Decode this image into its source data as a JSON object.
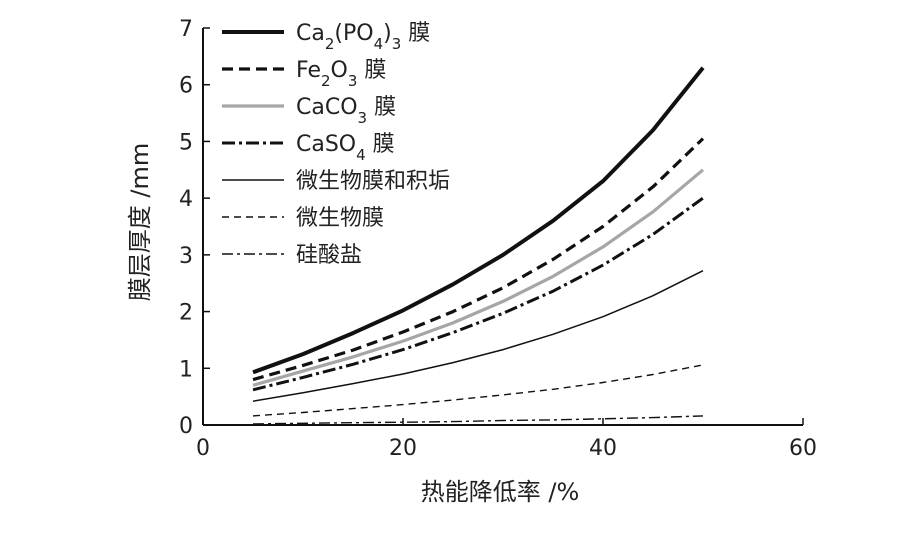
{
  "chart_data": {
    "type": "line",
    "xlabel": "热能降低率 /%",
    "ylabel": "膜层厚度 /mm",
    "xlim": [
      0,
      60
    ],
    "ylim": [
      0,
      7
    ],
    "xticks": [
      "0",
      "20",
      "40",
      "60"
    ],
    "yticks": [
      "0",
      "1",
      "2",
      "3",
      "4",
      "5",
      "6",
      "7"
    ],
    "grid": false,
    "legend_position": "top-left",
    "x": [
      5,
      10,
      15,
      20,
      25,
      30,
      35,
      40,
      45,
      50
    ],
    "series": [
      {
        "name": "Ca2(PO4)3 膜",
        "values": [
          0.93,
          1.25,
          1.62,
          2.02,
          2.48,
          3.0,
          3.6,
          4.3,
          5.2,
          6.3
        ],
        "color": "#111111",
        "stroke_width": 4,
        "dash": ""
      },
      {
        "name": "Fe2O3 膜",
        "values": [
          0.8,
          1.05,
          1.32,
          1.64,
          2.0,
          2.42,
          2.92,
          3.5,
          4.2,
          5.05
        ],
        "color": "#111111",
        "stroke_width": 3.2,
        "dash": "11,6"
      },
      {
        "name": "CaCO3 膜",
        "values": [
          0.7,
          0.95,
          1.2,
          1.48,
          1.8,
          2.18,
          2.62,
          3.14,
          3.76,
          4.5
        ],
        "color": "#a6a6a6",
        "stroke_width": 3.2,
        "dash": ""
      },
      {
        "name": "CaSO4 膜",
        "values": [
          0.62,
          0.84,
          1.07,
          1.33,
          1.63,
          1.97,
          2.36,
          2.82,
          3.36,
          4.0
        ],
        "color": "#111111",
        "stroke_width": 3,
        "dash": "13,4,3,4"
      },
      {
        "name": "微生物膜和积垢",
        "values": [
          0.42,
          0.57,
          0.73,
          0.9,
          1.1,
          1.33,
          1.6,
          1.91,
          2.28,
          2.72
        ],
        "color": "#111111",
        "stroke_width": 1.5,
        "dash": ""
      },
      {
        "name": "微生物膜",
        "values": [
          0.16,
          0.22,
          0.29,
          0.36,
          0.44,
          0.53,
          0.63,
          0.75,
          0.89,
          1.06
        ],
        "color": "#111111",
        "stroke_width": 1.4,
        "dash": "7,5"
      },
      {
        "name": "硅酸盐",
        "values": [
          0.02,
          0.03,
          0.04,
          0.05,
          0.06,
          0.08,
          0.09,
          0.11,
          0.13,
          0.16
        ],
        "color": "#111111",
        "stroke_width": 1.4,
        "dash": "11,4,3,4"
      }
    ]
  }
}
